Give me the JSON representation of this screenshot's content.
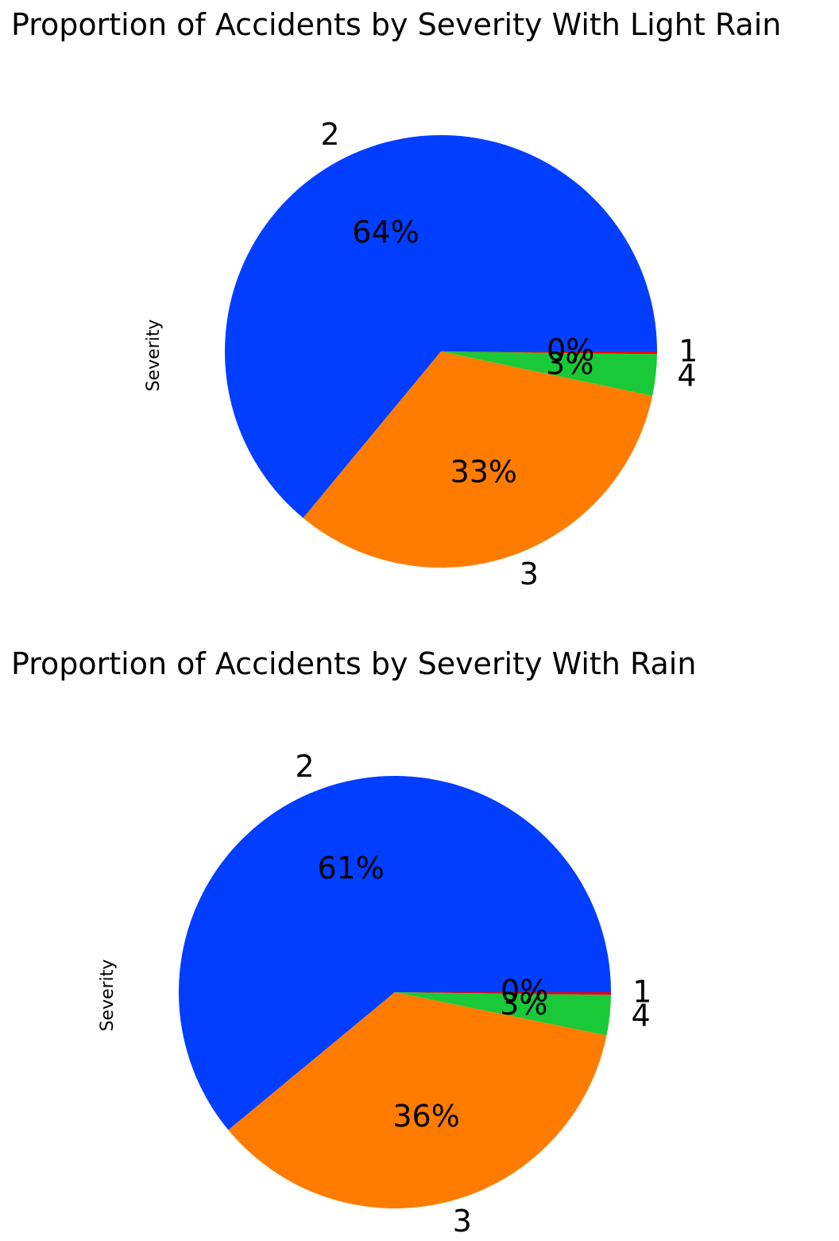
{
  "chart_data": [
    {
      "type": "pie",
      "title": "Proportion of Accidents by Severity With Light Rain",
      "ylabel": "Severity",
      "labels": [
        "2",
        "3",
        "4",
        "1"
      ],
      "values": [
        64.0,
        32.7,
        3.1,
        0.2
      ],
      "pct_labels": [
        "64%",
        "33%",
        "3%",
        "0%"
      ],
      "colors": [
        "#023eff",
        "#ff7c00",
        "#1ac938",
        "#e8000b"
      ],
      "startangle": 0,
      "direction": "counterclockwise"
    },
    {
      "type": "pie",
      "title": "Proportion of Accidents by Severity With Rain",
      "ylabel": "Severity",
      "labels": [
        "2",
        "3",
        "4",
        "1"
      ],
      "values": [
        61.0,
        35.8,
        3.0,
        0.2
      ],
      "pct_labels": [
        "61%",
        "36%",
        "3%",
        "0%"
      ],
      "colors": [
        "#023eff",
        "#ff7c00",
        "#1ac938",
        "#e8000b"
      ],
      "startangle": 0,
      "direction": "counterclockwise"
    }
  ]
}
